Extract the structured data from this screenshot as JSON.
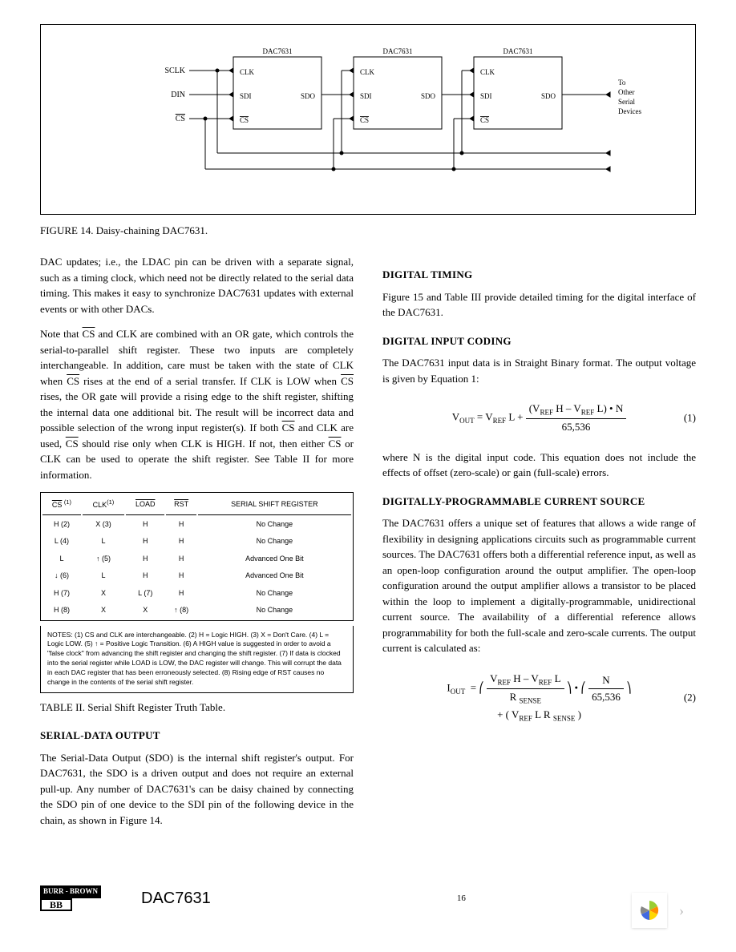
{
  "figure": {
    "chip_label": "DAC7631",
    "pins": {
      "clk": "CLK",
      "sdi": "SDI",
      "cs": "CS",
      "sdo": "SDO"
    },
    "inputs": {
      "sclk": "SCLK",
      "din": "DIN",
      "cs": "CS"
    },
    "output_note": [
      "To",
      "Other",
      "Serial",
      "Devices"
    ],
    "caption": "FIGURE 14. Daisy-chaining DAC7631."
  },
  "left": {
    "p1": "DAC updates; i.e., the LDAC pin can be driven with a separate signal, such as a timing clock, which need not be directly related to the serial data timing. This makes it easy to synchronize DAC7631 updates with external events or with other DACs.",
    "p2_a": "Note that ",
    "p2_cs": "CS",
    "p2_b": " and CLK are combined with an OR gate, which controls the serial-to-parallel shift register. These two inputs are completely interchangeable. In addition, care must be taken with the state of CLK when ",
    "p2_cs2": "CS",
    "p2_c": " rises at the end of a serial transfer. If CLK is LOW when ",
    "p2_cs3": "CS",
    "p2_d": " rises, the OR gate will provide a rising edge to the shift register, shifting the internal data one additional bit. The result will be incorrect data and possible selection of the wrong input register(s). If both ",
    "p2_cs4": "CS",
    "p2_e": " and CLK are used, ",
    "p2_cs5": "CS",
    "p2_f": " should rise only when CLK is HIGH. If not, then either ",
    "p2_cs6": "CS",
    "p2_g": " or CLK can be used to operate the shift register. See Table II for more information.",
    "table": {
      "headers": [
        "CS (1)",
        "CLK (1)",
        "LOAD",
        "RST",
        "SERIAL SHIFT REGISTER"
      ],
      "rows": [
        [
          "H (2)",
          "X (3)",
          "H",
          "H",
          "No Change"
        ],
        [
          "L (4)",
          "L",
          "H",
          "H",
          "No Change"
        ],
        [
          "L",
          "↑ (5)",
          "H",
          "H",
          "Advanced One Bit"
        ],
        [
          "↓ (6)",
          "L",
          "H",
          "H",
          "Advanced One Bit"
        ],
        [
          "H (7)",
          "X",
          "L (7)",
          "H",
          "No Change"
        ],
        [
          "H (8)",
          "X",
          "X",
          "↑ (8)",
          "No Change"
        ]
      ],
      "notes": "NOTES: (1) CS and CLK are interchangeable. (2) H = Logic HIGH. (3) X = Don't Care. (4) L = Logic LOW. (5) ↑ = Positive Logic Transition. (6) A HIGH value is suggested in order to avoid a \"false clock\" from advancing the shift register and changing the shift register. (7) If data is clocked into the serial register while LOAD is LOW, the DAC register will change. This will corrupt the data in each DAC register that has been erroneously selected. (8) Rising edge of RST causes no change in the contents of the serial shift register.",
      "caption": "TABLE II. Serial Shift Register Truth Table."
    },
    "h_sdo": "SERIAL-DATA OUTPUT",
    "p_sdo": "The Serial-Data Output (SDO) is the internal shift register's output. For DAC7631, the SDO is a driven output and does not require an external pull-up. Any number of DAC7631's can be daisy chained by connecting the SDO pin of one device to the SDI pin of the following device in the chain, as shown in Figure 14."
  },
  "right": {
    "h_dt": "DIGITAL TIMING",
    "p_dt": "Figure 15 and Table III provide detailed timing for the digital interface of the DAC7631.",
    "h_dic": "DIGITAL INPUT CODING",
    "p_dic": "The DAC7631 input data is in Straight Binary format. The output voltage is given by Equation 1:",
    "eq1": {
      "lhs": "V",
      "lhs_sub": "OUT",
      "eq": " = V",
      "vref_sub": "REF",
      "L": " L + ",
      "num_a": "(V",
      "num_b": " H – V",
      "num_c": " L) • N",
      "den": "65,536",
      "num": "(1)"
    },
    "p_dic2": "where N is the digital input code. This equation does not include the effects of offset (zero-scale) or gain (full-scale) errors.",
    "h_dpcs": "DIGITALLY-PROGRAMMABLE CURRENT SOURCE",
    "p_dpcs": "The DAC7631 offers a unique set of features that allows a wide range of flexibility in designing applications circuits such as programmable current sources. The DAC7631 offers both a differential reference input, as well as an open-loop configuration around the output amplifier. The open-loop configuration around the output amplifier allows a transistor to be placed within the loop to implement a digitally-programmable, unidirectional current source. The availability of a differential reference allows programmability for both the full-scale and zero-scale currents. The output current is calculated as:",
    "eq2": {
      "lhs": "I",
      "lhs_sub": "OUT",
      "num1_a": "V",
      "num1_b": " H – V",
      "num1_c": " L",
      "den1": "R ",
      "den1_sub": "SENSE",
      "num2": "N",
      "den2": "65,536",
      "plus": " + ( V",
      "plus_b": " L R ",
      "plus_sub": "SENSE",
      "plus_c": " )",
      "num": "(2)"
    }
  },
  "footer": {
    "brand": "BURR - BROWN",
    "part": "DAC7631",
    "page": "16"
  }
}
